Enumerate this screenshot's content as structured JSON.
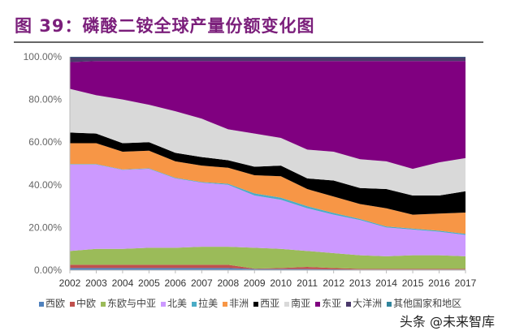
{
  "title": "图 39：磷酸二铵全球产量份额变化图",
  "watermark": "头条 @未来智库",
  "chart_data": {
    "type": "area",
    "stacked": true,
    "title": "图 39：磷酸二铵全球产量份额变化图",
    "xlabel": "",
    "ylabel": "",
    "x": [
      "2002",
      "2003",
      "2004",
      "2005",
      "2006",
      "2007",
      "2008",
      "2009",
      "2010",
      "2011",
      "2012",
      "2013",
      "2014",
      "2015",
      "2016",
      "2017"
    ],
    "ylim": [
      0,
      100
    ],
    "yticks": [
      "0.00%",
      "20.00%",
      "40.00%",
      "60.00%",
      "80.00%",
      "100.00%"
    ],
    "grid": false,
    "legend": "bottom",
    "series": [
      {
        "name": "西欧",
        "color": "#4f81bd",
        "values": [
          1,
          1,
          1,
          1,
          1,
          1,
          1,
          0.5,
          0.5,
          0.5,
          0.4,
          0.3,
          0.3,
          0.3,
          0.3,
          0.3
        ]
      },
      {
        "name": "中欧",
        "color": "#c0504d",
        "values": [
          1.5,
          1.5,
          1.5,
          1.5,
          1.5,
          1.5,
          1.5,
          0.2,
          0.5,
          1,
          0.6,
          0.3,
          0.3,
          0.3,
          0.3,
          0.3
        ]
      },
      {
        "name": "东欧与中亚",
        "color": "#9bbb59",
        "values": [
          6.5,
          7.5,
          7.5,
          8,
          8,
          8.5,
          8.5,
          9.8,
          9,
          7.5,
          7,
          6.4,
          5.9,
          6.4,
          6.4,
          5.9
        ]
      },
      {
        "name": "北美",
        "color": "#cc99ff",
        "values": [
          40.5,
          39.5,
          37,
          37,
          32.5,
          30,
          29,
          24.5,
          23,
          20,
          18,
          16.5,
          13.5,
          12,
          11,
          10
        ]
      },
      {
        "name": "拉美",
        "color": "#4bacc6",
        "values": [
          0.2,
          0.2,
          0.2,
          0.2,
          0.3,
          0.3,
          0.5,
          1,
          1,
          1,
          0.8,
          0.5,
          0.5,
          0.5,
          0.5,
          0.5
        ]
      },
      {
        "name": "非洲",
        "color": "#f79646",
        "values": [
          9.8,
          9.8,
          8.3,
          8.3,
          7.7,
          7.7,
          7.5,
          8.5,
          10,
          8,
          7.7,
          7,
          8.5,
          6.5,
          8,
          10
        ]
      },
      {
        "name": "西亚",
        "color": "#000000",
        "values": [
          5,
          4.5,
          4,
          4,
          4,
          4,
          3.5,
          4,
          5,
          5,
          7.5,
          7.5,
          9,
          9,
          8.5,
          10
        ]
      },
      {
        "name": "南亚",
        "color": "#d9d9d9",
        "values": [
          20.5,
          18,
          20.5,
          17.5,
          19.5,
          18,
          14.5,
          15.5,
          13,
          13.5,
          13.5,
          13.5,
          13,
          12.5,
          15.5,
          15.5
        ]
      },
      {
        "name": "东亚",
        "color": "#800080",
        "values": [
          12.5,
          16,
          18,
          20.5,
          23.5,
          27,
          32,
          34,
          36,
          41.5,
          42.5,
          46,
          47,
          50.5,
          47.5,
          45.5
        ]
      },
      {
        "name": "大洋洲",
        "color": "#4b3a6b",
        "values": [
          2.3,
          1.8,
          1.8,
          1.8,
          1.8,
          1.8,
          1.8,
          1.8,
          1.8,
          1.8,
          1.8,
          1.8,
          1.8,
          1.8,
          1.8,
          1.8
        ]
      },
      {
        "name": "其他国家和地区",
        "color": "#31859c",
        "values": [
          0.2,
          0.2,
          0.2,
          0.2,
          0.2,
          0.2,
          0.2,
          0.2,
          0.2,
          0.2,
          0.2,
          0.2,
          0.2,
          0.2,
          0.2,
          0.2
        ]
      }
    ]
  }
}
